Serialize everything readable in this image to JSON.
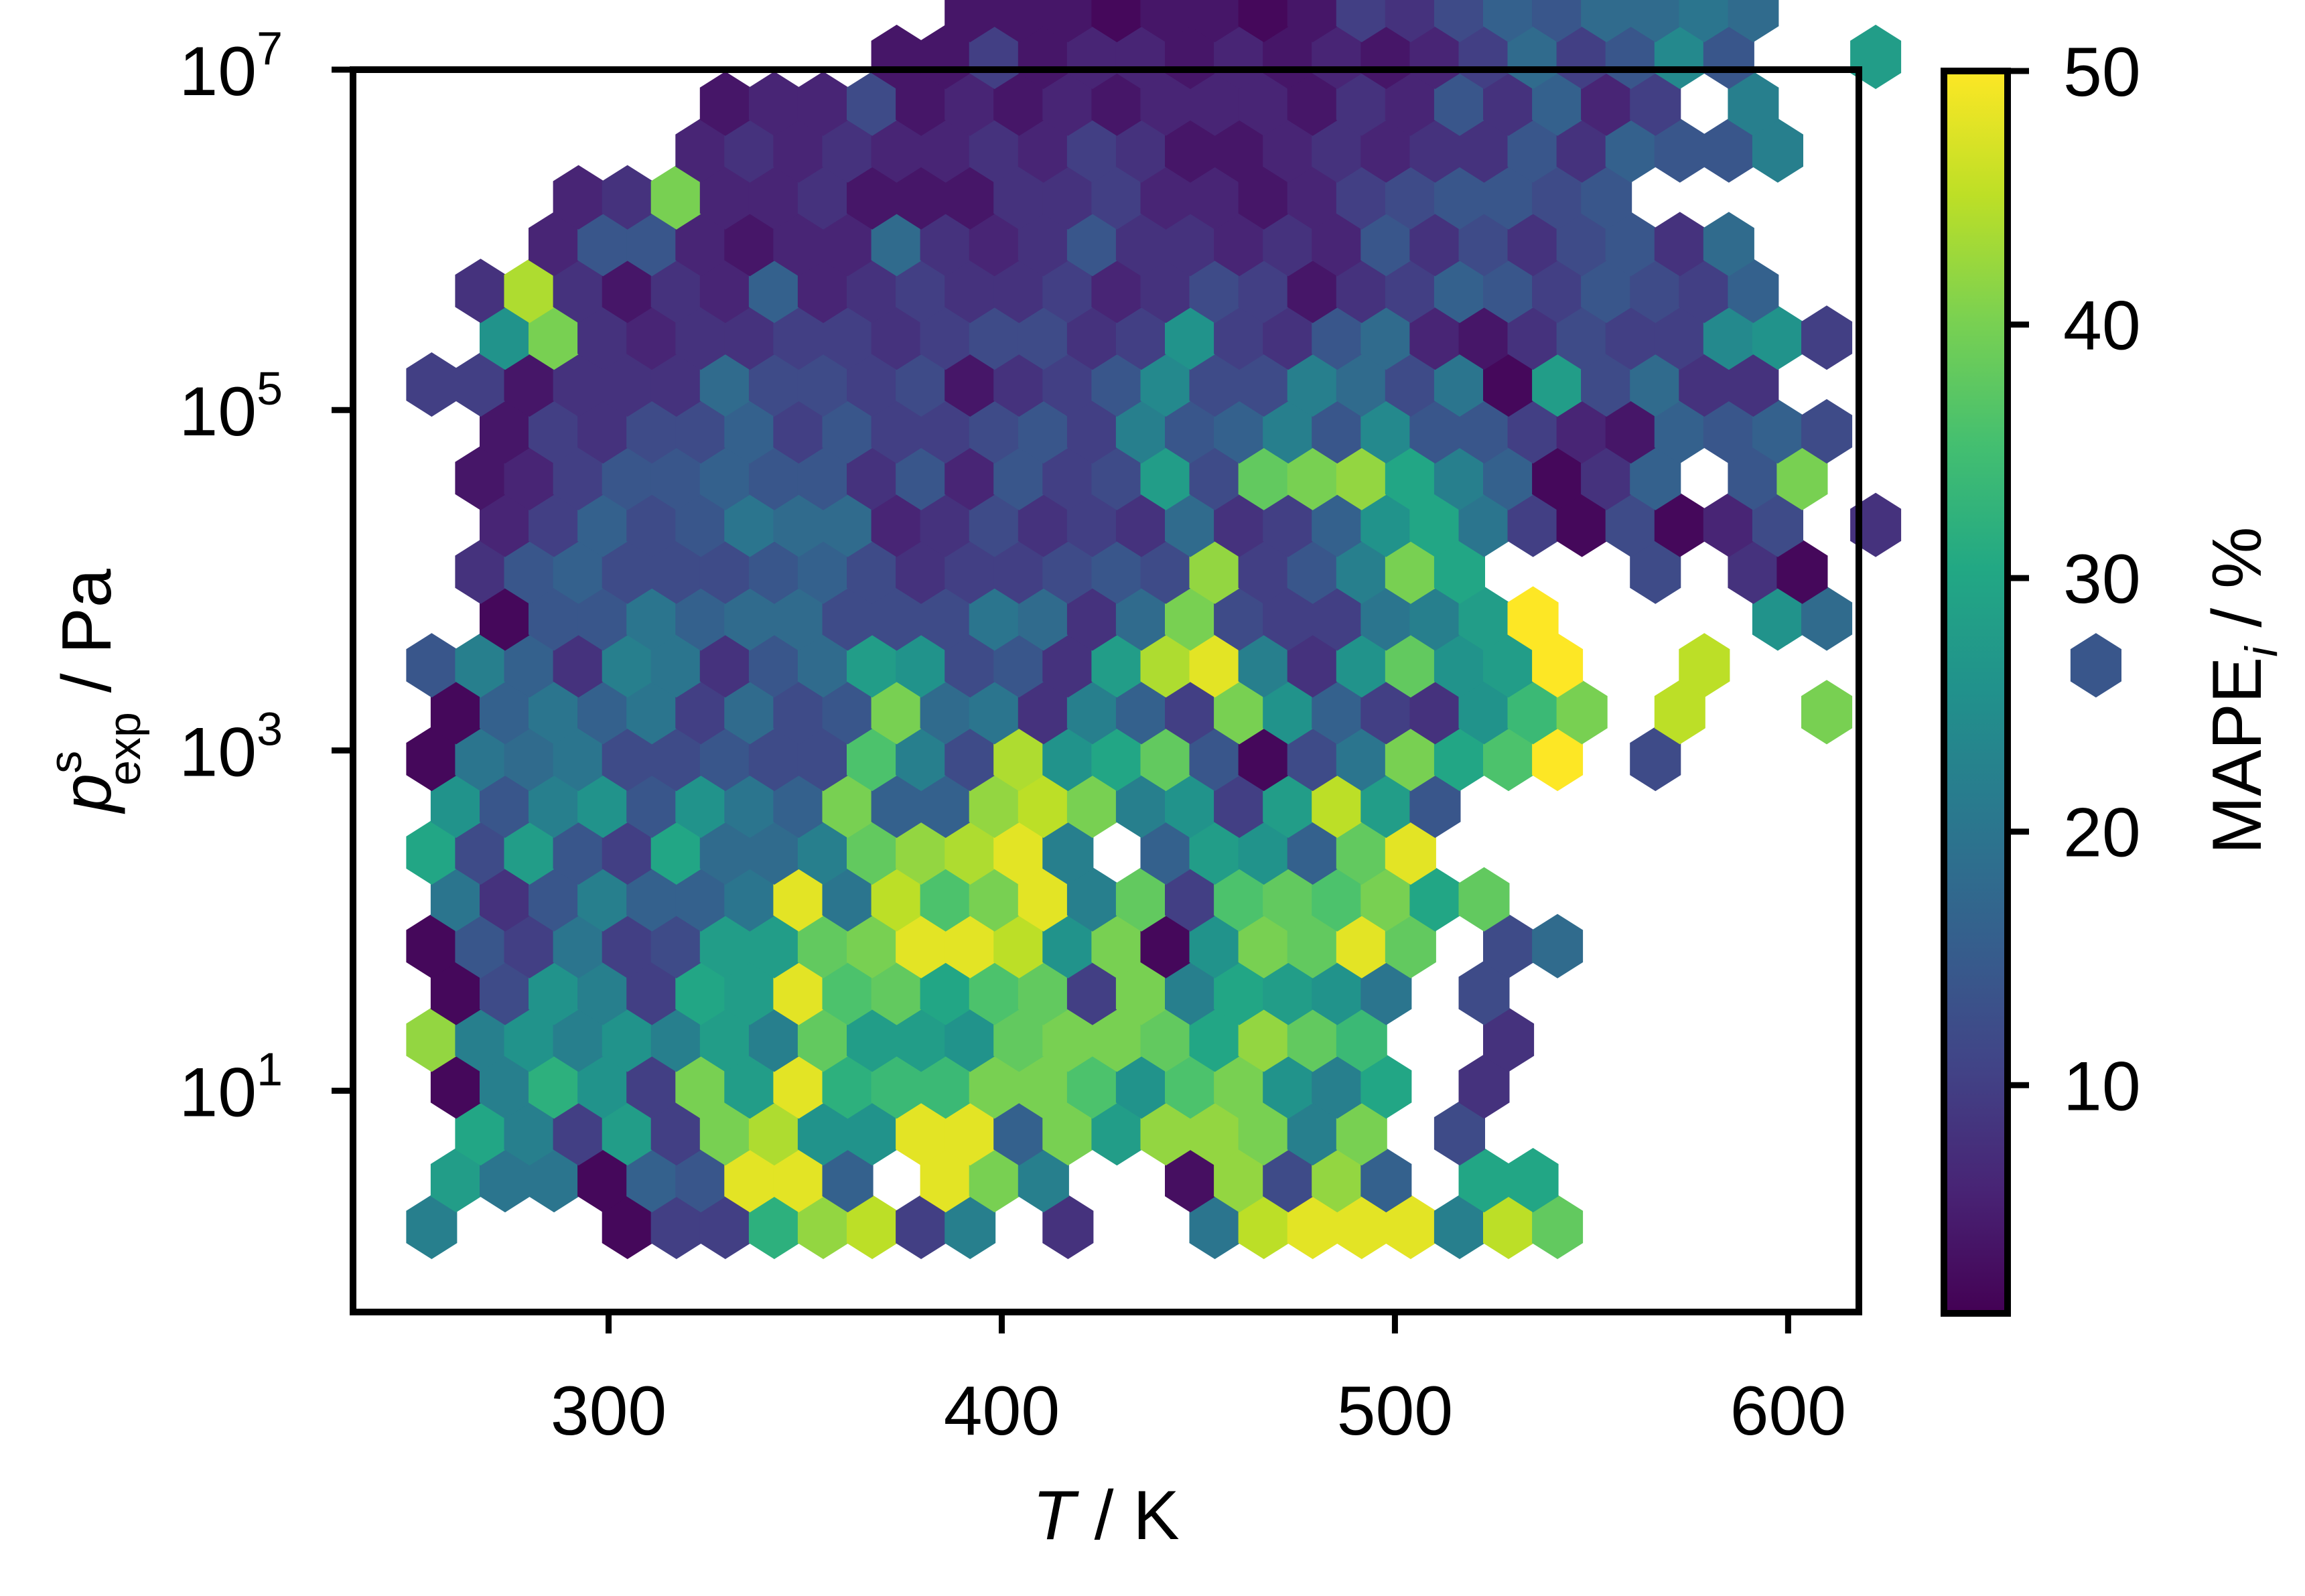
{
  "chart_data": {
    "type": "heatmap",
    "subtype": "hexbin",
    "title": "",
    "xlabel": {
      "var": "T",
      "sep": " / ",
      "unit": "K"
    },
    "ylabel": {
      "base": "p",
      "sup": "s",
      "sub": "exp",
      "sep": " / ",
      "unit": "Pa"
    },
    "colorbar_label": {
      "base": "MAPE",
      "sub": "i",
      "sep": " / ",
      "unit": "%"
    },
    "xlim": [
      235,
      618
    ],
    "ylim_log10": [
      -0.3,
      7.0
    ],
    "y_scale": "log",
    "x_ticks": [
      300,
      400,
      500,
      600
    ],
    "y_ticks": [
      {
        "base": "10",
        "exp": "1",
        "log10": 1
      },
      {
        "base": "10",
        "exp": "3",
        "log10": 3
      },
      {
        "base": "10",
        "exp": "5",
        "log10": 5
      },
      {
        "base": "10",
        "exp": "7",
        "log10": 7
      }
    ],
    "colormap": "viridis",
    "color_range": [
      1,
      50
    ],
    "colorbar_ticks": [
      10,
      20,
      30,
      40,
      50
    ],
    "grid": false,
    "hex_x0": 255,
    "hex_dx": 12.45,
    "hex_y0": 0.2,
    "hex_dy": 0.275,
    "rows": [
      {
        "start": 0,
        "values": [
          22,
          null,
          null,
          null,
          2,
          10,
          10,
          32,
          42,
          45,
          10,
          22,
          null,
          8,
          null,
          null,
          20,
          45,
          48,
          48,
          48,
          22,
          45,
          38
        ]
      },
      {
        "start": 0,
        "values": [
          28,
          20,
          20,
          2,
          16,
          14,
          48,
          48,
          16,
          null,
          48,
          40,
          22,
          null,
          null,
          3,
          42,
          12,
          42,
          16,
          null,
          30,
          30
        ]
      },
      {
        "start": 0,
        "values": [
          null,
          30,
          22,
          10,
          28,
          10,
          40,
          44,
          26,
          26,
          48,
          48,
          16,
          40,
          28,
          42,
          42,
          40,
          22,
          40,
          null,
          12
        ]
      },
      {
        "start": 0,
        "values": [
          2,
          22,
          32,
          26,
          10,
          40,
          28,
          48,
          32,
          34,
          34,
          40,
          40,
          36,
          26,
          36,
          40,
          26,
          22,
          30,
          null,
          8
        ]
      },
      {
        "start": 0,
        "values": [
          42,
          22,
          26,
          22,
          26,
          22,
          28,
          22,
          38,
          28,
          28,
          26,
          38,
          40,
          40,
          38,
          30,
          42,
          38,
          34,
          null,
          null,
          8
        ]
      },
      {
        "start": 0,
        "values": [
          2,
          12,
          26,
          22,
          10,
          30,
          28,
          48,
          36,
          38,
          30,
          36,
          38,
          10,
          40,
          22,
          30,
          28,
          26,
          20,
          null,
          12
        ]
      },
      {
        "start": 0,
        "values": [
          2,
          14,
          10,
          20,
          10,
          12,
          28,
          28,
          38,
          40,
          48,
          48,
          45,
          26,
          40,
          2,
          26,
          40,
          38,
          48,
          38,
          null,
          12,
          18
        ]
      },
      {
        "start": 0,
        "values": [
          20,
          8,
          14,
          22,
          16,
          16,
          20,
          48,
          20,
          45,
          36,
          40,
          48,
          22,
          38,
          10,
          36,
          38,
          36,
          40,
          30,
          38
        ]
      },
      {
        "start": 0,
        "values": [
          30,
          12,
          28,
          14,
          10,
          30,
          18,
          18,
          22,
          38,
          42,
          44,
          48,
          22,
          null,
          16,
          28,
          26,
          16,
          38,
          48
        ]
      },
      {
        "start": 0,
        "values": [
          26,
          14,
          22,
          26,
          14,
          26,
          20,
          16,
          40,
          16,
          16,
          42,
          45,
          40,
          22,
          26,
          10,
          28,
          45,
          28,
          14
        ]
      },
      {
        "start": 0,
        "values": [
          2,
          20,
          18,
          20,
          12,
          12,
          14,
          12,
          12,
          36,
          22,
          12,
          44,
          26,
          30,
          38,
          14,
          2,
          12,
          20,
          40,
          30,
          36,
          50,
          null,
          12
        ]
      },
      {
        "start": 0,
        "values": [
          2,
          16,
          20,
          16,
          20,
          10,
          18,
          12,
          14,
          40,
          18,
          20,
          8,
          22,
          16,
          10,
          40,
          26,
          16,
          10,
          8,
          26,
          34,
          40,
          null,
          45,
          null,
          null,
          40
        ]
      },
      {
        "start": 0,
        "values": [
          14,
          22,
          16,
          8,
          22,
          20,
          8,
          14,
          18,
          28,
          26,
          12,
          14,
          8,
          28,
          44,
          48,
          22,
          8,
          26,
          38,
          26,
          28,
          50,
          null,
          null,
          45,
          null,
          null,
          null,
          null,
          null,
          null,
          null,
          14
        ]
      },
      {
        "start": 0,
        "values": [
          null,
          2,
          14,
          14,
          20,
          16,
          18,
          18,
          12,
          12,
          12,
          20,
          18,
          8,
          18,
          40,
          12,
          10,
          10,
          20,
          22,
          28,
          50,
          null,
          null,
          null,
          null,
          26,
          18
        ]
      },
      {
        "start": 0,
        "values": [
          null,
          8,
          14,
          16,
          12,
          12,
          12,
          14,
          16,
          12,
          8,
          10,
          10,
          12,
          14,
          12,
          42,
          10,
          14,
          22,
          40,
          30,
          null,
          null,
          null,
          12,
          null,
          8,
          2
        ]
      },
      {
        "start": 0,
        "values": [
          null,
          6,
          10,
          16,
          12,
          14,
          20,
          18,
          18,
          6,
          8,
          12,
          8,
          10,
          8,
          18,
          8,
          10,
          16,
          26,
          30,
          20,
          10,
          2,
          12,
          2,
          6,
          12,
          null,
          8
        ]
      },
      {
        "start": 0,
        "values": [
          null,
          4,
          6,
          10,
          14,
          14,
          16,
          14,
          14,
          8,
          14,
          6,
          14,
          10,
          12,
          28,
          12,
          38,
          40,
          42,
          30,
          22,
          16,
          2,
          8,
          16,
          null,
          14,
          40
        ]
      },
      {
        "start": 0,
        "values": [
          null,
          4,
          10,
          8,
          12,
          12,
          16,
          10,
          14,
          10,
          10,
          12,
          14,
          10,
          22,
          14,
          16,
          22,
          14,
          24,
          14,
          14,
          10,
          6,
          4,
          16,
          14,
          16,
          12
        ]
      },
      {
        "start": 0,
        "values": [
          10,
          10,
          4,
          8,
          8,
          8,
          18,
          12,
          12,
          10,
          12,
          4,
          8,
          10,
          14,
          24,
          12,
          12,
          22,
          18,
          12,
          20,
          2,
          28,
          12,
          18,
          8,
          8
        ]
      },
      {
        "start": 0,
        "values": [
          null,
          26,
          40,
          8,
          6,
          8,
          8,
          10,
          10,
          8,
          10,
          12,
          12,
          8,
          10,
          26,
          10,
          8,
          14,
          18,
          6,
          4,
          8,
          12,
          10,
          10,
          24,
          26,
          10
        ]
      },
      {
        "start": 1,
        "values": [
          8,
          44,
          8,
          4,
          8,
          6,
          16,
          6,
          8,
          10,
          8,
          8,
          10,
          6,
          8,
          12,
          10,
          4,
          8,
          10,
          16,
          14,
          10,
          14,
          12,
          10,
          16
        ]
      },
      {
        "start": 2,
        "values": [
          6,
          14,
          14,
          6,
          4,
          6,
          6,
          18,
          8,
          6,
          8,
          14,
          8,
          8,
          6,
          8,
          6,
          14,
          8,
          12,
          8,
          12,
          14,
          8,
          18
        ]
      },
      {
        "start": 3,
        "values": [
          6,
          8,
          40,
          6,
          6,
          8,
          4,
          4,
          4,
          8,
          8,
          10,
          6,
          6,
          4,
          6,
          10,
          12,
          14,
          14,
          12,
          14
        ]
      },
      {
        "start": 5,
        "values": [
          6,
          8,
          6,
          8,
          6,
          6,
          8,
          6,
          10,
          8,
          4,
          4,
          6,
          8,
          6,
          8,
          8,
          14,
          8,
          16,
          14,
          14,
          22
        ]
      },
      {
        "start": 6,
        "values": [
          4,
          6,
          6,
          12,
          4,
          6,
          4,
          6,
          4,
          6,
          6,
          6,
          4,
          8,
          6,
          14,
          8,
          16,
          6,
          10,
          null,
          22
        ]
      },
      {
        "start": 9,
        "values": [
          4,
          4,
          10,
          4,
          6,
          6,
          4,
          6,
          4,
          6,
          4,
          6,
          10,
          18,
          10,
          14,
          24,
          14,
          null,
          null,
          28
        ]
      },
      {
        "start": 11,
        "values": [
          4,
          4,
          4,
          2,
          4,
          4,
          2,
          4,
          10,
          8,
          12,
          16,
          14,
          18,
          18,
          20,
          18
        ]
      },
      {
        "start": 14,
        "values": [
          4,
          4,
          4,
          2,
          4,
          4,
          4,
          4,
          4,
          4,
          6,
          10,
          4,
          6,
          20,
          14,
          16
        ]
      },
      {
        "start": 17,
        "values": [
          4,
          2,
          2,
          4,
          4,
          4,
          4,
          18,
          4,
          2,
          8,
          4,
          2,
          2,
          4,
          12
        ]
      },
      {
        "start": 21,
        "values": [
          2,
          2,
          2,
          2,
          2,
          4,
          2,
          4,
          4,
          4,
          4,
          4,
          6,
          4,
          null,
          2,
          4
        ]
      },
      {
        "start": 27,
        "values": [
          2,
          2,
          4,
          4,
          6,
          4,
          6,
          4
        ]
      },
      {
        "start": 30,
        "values": [
          6,
          6
        ]
      }
    ]
  }
}
